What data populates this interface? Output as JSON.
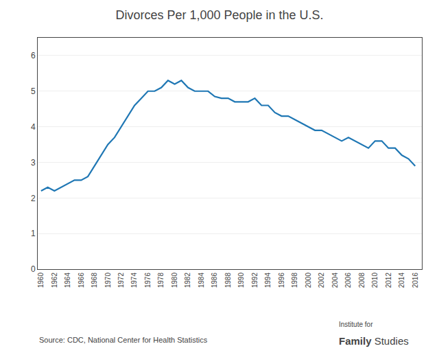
{
  "chart_data": {
    "type": "line",
    "title": "Divorces Per 1,000 People in the U.S.",
    "x": [
      1960,
      1961,
      1962,
      1963,
      1964,
      1965,
      1966,
      1967,
      1968,
      1969,
      1970,
      1971,
      1972,
      1973,
      1974,
      1975,
      1976,
      1977,
      1978,
      1979,
      1980,
      1981,
      1982,
      1983,
      1984,
      1985,
      1986,
      1987,
      1988,
      1989,
      1990,
      1991,
      1992,
      1993,
      1994,
      1995,
      1996,
      1997,
      1998,
      1999,
      2000,
      2001,
      2002,
      2003,
      2004,
      2005,
      2006,
      2007,
      2008,
      2009,
      2010,
      2011,
      2012,
      2013,
      2014,
      2015,
      2016
    ],
    "values": [
      2.2,
      2.3,
      2.2,
      2.3,
      2.4,
      2.5,
      2.5,
      2.6,
      2.9,
      3.2,
      3.5,
      3.7,
      4.0,
      4.3,
      4.6,
      4.8,
      5.0,
      5.0,
      5.1,
      5.3,
      5.2,
      5.3,
      5.1,
      5.0,
      5.0,
      5.0,
      4.85,
      4.8,
      4.8,
      4.7,
      4.7,
      4.7,
      4.8,
      4.6,
      4.6,
      4.4,
      4.3,
      4.3,
      4.2,
      4.1,
      4.0,
      3.9,
      3.9,
      3.8,
      3.7,
      3.6,
      3.7,
      3.6,
      3.5,
      3.4,
      3.6,
      3.6,
      3.4,
      3.4,
      3.2,
      3.1,
      2.9
    ],
    "xlim": [
      1959.5,
      2017
    ],
    "xticks": [
      1960,
      1962,
      1964,
      1966,
      1968,
      1970,
      1972,
      1974,
      1976,
      1978,
      1980,
      1982,
      1984,
      1986,
      1988,
      1990,
      1992,
      1994,
      1996,
      1998,
      2000,
      2002,
      2004,
      2006,
      2008,
      2010,
      2012,
      2014,
      2016
    ],
    "ylim": [
      0,
      6.5
    ],
    "yticks": [
      0,
      1,
      2,
      3,
      4,
      5,
      6
    ],
    "grid": "y",
    "annotations": [
      "Source: CDC, National Center for Health Statistics",
      "Institute for",
      "Family",
      "Studies"
    ]
  }
}
